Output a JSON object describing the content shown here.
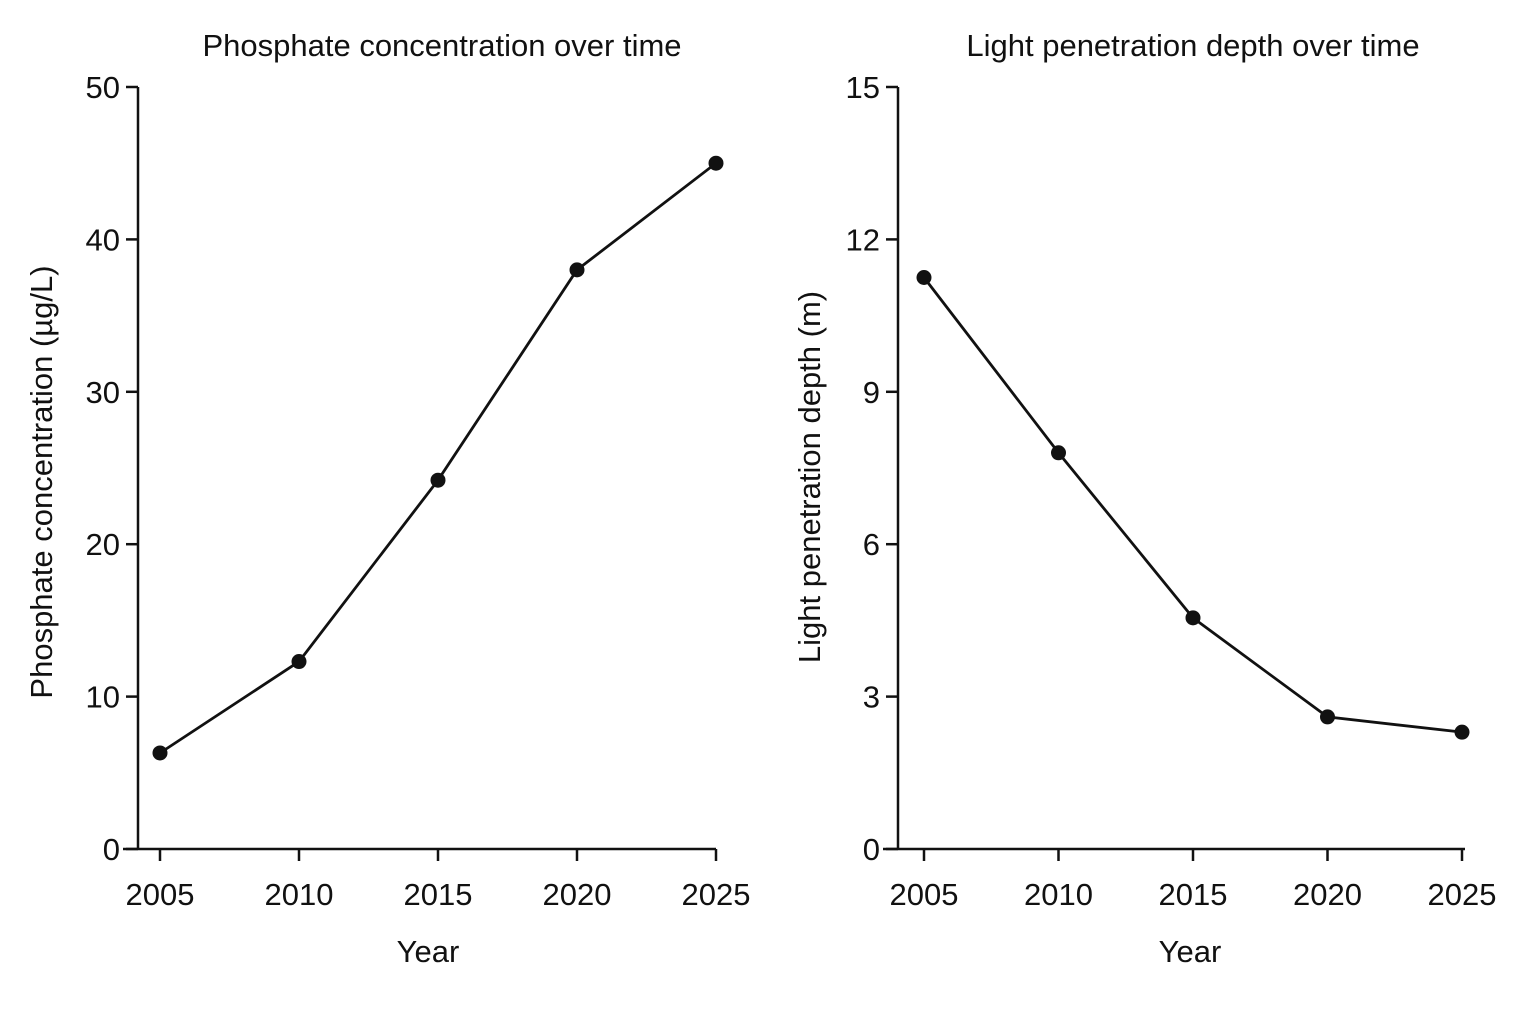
{
  "chart_data": [
    {
      "type": "line",
      "title": "Phosphate concentration over time",
      "xlabel": "Year",
      "ylabel": "Phosphate concentration (µg/L)",
      "x": [
        2005,
        2010,
        2015,
        2020,
        2025
      ],
      "xticks": [
        "2005",
        "2010",
        "2015",
        "2020",
        "2025"
      ],
      "xlim": [
        2004.5,
        2025
      ],
      "yticks": [
        "0",
        "10",
        "20",
        "30",
        "40",
        "50"
      ],
      "ylim": [
        0,
        50
      ],
      "series": [
        {
          "values": [
            6.3,
            12.3,
            24.2,
            38.0,
            45.0
          ]
        }
      ],
      "grid": false,
      "color": "#111111"
    },
    {
      "type": "line",
      "title": "Light penetration depth over time",
      "xlabel": "Year",
      "ylabel": "Light penetration depth (m)",
      "x": [
        2005,
        2010,
        2015,
        2020,
        2025
      ],
      "xticks": [
        "2005",
        "2010",
        "2015",
        "2020",
        "2025"
      ],
      "xlim": [
        2004.5,
        2025
      ],
      "yticks": [
        "0",
        "3",
        "6",
        "9",
        "12",
        "15"
      ],
      "ylim": [
        0,
        15
      ],
      "series": [
        {
          "values": [
            11.25,
            7.8,
            4.55,
            2.6,
            2.3
          ]
        }
      ],
      "grid": false,
      "color": "#111111"
    }
  ]
}
